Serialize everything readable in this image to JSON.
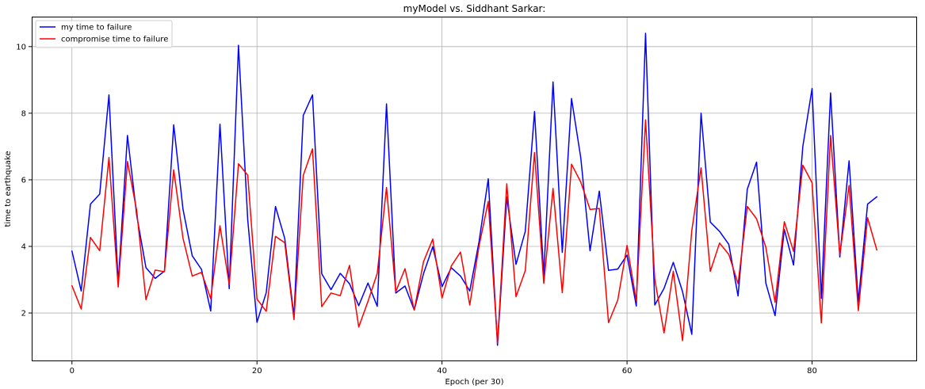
{
  "chart_data": {
    "type": "line",
    "title": "myModel vs. Siddhant Sarkar:",
    "xlabel": "Epoch (per 30)",
    "ylabel": "time to earthquake",
    "xlim": [
      -4.35,
      91.35
    ],
    "ylim": [
      0.55,
      10.9
    ],
    "xticks": [
      0,
      20,
      40,
      60,
      80
    ],
    "yticks": [
      2,
      4,
      6,
      8,
      10
    ],
    "grid": true,
    "legend_position": "top-left",
    "series": [
      {
        "name": "my time to failure",
        "color": "#0000ff",
        "values": [
          3.86,
          2.66,
          5.27,
          5.57,
          8.55,
          2.89,
          7.33,
          4.93,
          3.36,
          3.04,
          3.26,
          7.65,
          5.12,
          3.72,
          3.31,
          2.06,
          7.67,
          2.73,
          10.04,
          4.8,
          1.72,
          2.61,
          5.2,
          4.24,
          1.9,
          7.93,
          8.55,
          3.18,
          2.7,
          3.19,
          2.88,
          2.22,
          2.9,
          2.2,
          8.28,
          2.6,
          2.81,
          2.09,
          3.18,
          3.99,
          2.79,
          3.36,
          3.11,
          2.66,
          4.14,
          6.03,
          1.03,
          5.48,
          3.46,
          4.45,
          8.05,
          3.13,
          8.94,
          3.82,
          8.44,
          6.66,
          3.87,
          5.66,
          3.28,
          3.32,
          3.74,
          2.21,
          10.4,
          2.24,
          2.74,
          3.52,
          2.64,
          1.36,
          8.0,
          4.73,
          4.45,
          4.06,
          2.51,
          5.72,
          6.53,
          2.9,
          1.92,
          4.51,
          3.44,
          7.0,
          8.74,
          2.44,
          8.61,
          3.68,
          6.57,
          2.33,
          5.27,
          5.49
        ]
      },
      {
        "name": "compromise time to failure",
        "color": "#ff0000",
        "values": [
          2.82,
          2.12,
          4.27,
          3.87,
          6.67,
          2.78,
          6.55,
          5.07,
          2.4,
          3.29,
          3.24,
          6.3,
          4.25,
          3.11,
          3.22,
          2.43,
          4.62,
          2.86,
          6.48,
          6.14,
          2.42,
          2.05,
          4.3,
          4.11,
          1.8,
          6.13,
          6.93,
          2.19,
          2.6,
          2.52,
          3.43,
          1.58,
          2.35,
          3.19,
          5.77,
          2.64,
          3.33,
          2.09,
          3.54,
          4.22,
          2.45,
          3.41,
          3.83,
          2.24,
          4.01,
          5.35,
          1.1,
          5.88,
          2.49,
          3.27,
          6.82,
          2.89,
          5.74,
          2.61,
          6.47,
          5.93,
          5.11,
          5.14,
          1.71,
          2.39,
          4.03,
          2.36,
          7.8,
          3.01,
          1.4,
          3.25,
          1.17,
          4.48,
          6.36,
          3.25,
          4.1,
          3.76,
          2.88,
          5.2,
          4.83,
          3.98,
          2.32,
          4.74,
          3.85,
          6.44,
          5.91,
          1.7,
          7.33,
          3.75,
          5.83,
          2.07,
          4.86,
          3.89
        ]
      }
    ]
  }
}
